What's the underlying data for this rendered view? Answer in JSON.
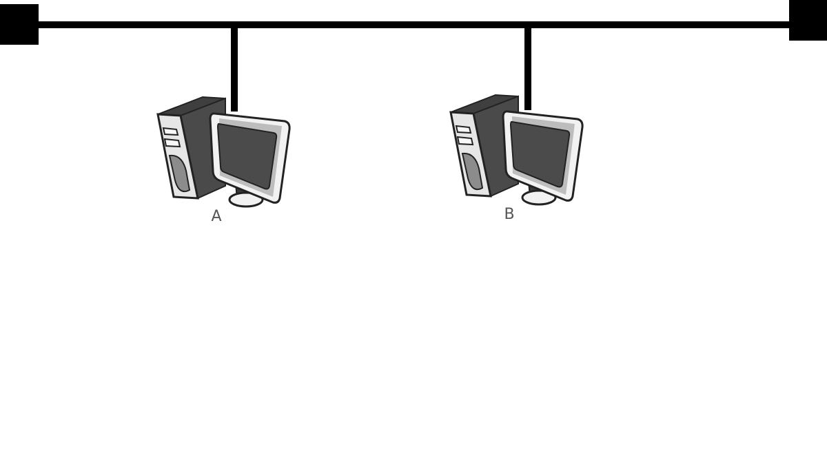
{
  "diagram": {
    "type": "bus-network",
    "nodes": [
      {
        "label": "A",
        "icon": "desktop-computer-icon"
      },
      {
        "label": "B",
        "icon": "desktop-computer-icon"
      }
    ],
    "bus": {
      "terminators": [
        "left-terminator",
        "right-terminator"
      ]
    }
  },
  "colors": {
    "line": "#000000",
    "tower_dark": "#4a4a4a",
    "tower_light": "#e6e6e6",
    "tower_mid": "#8c8c8c",
    "screen": "#4b4b4b",
    "bezel": "#f2f2f2",
    "label": "#555555"
  }
}
